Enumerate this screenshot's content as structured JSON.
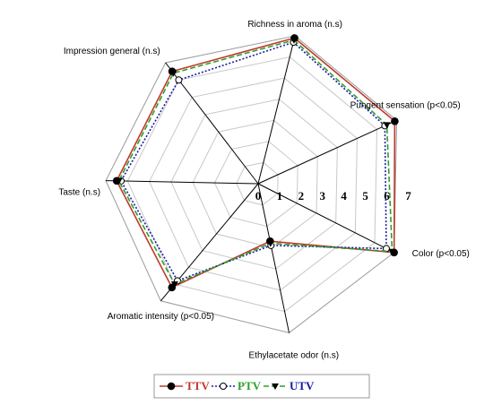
{
  "chart_data": {
    "type": "radar",
    "axes": [
      "Richness in aroma (n.s)",
      "Pungent sensation (p<0.05)",
      "Color (p<0.05)",
      "Ethylacetate odor (n.s)",
      "Aromatic intensity (p<0.05)",
      "Taste (n.s)",
      "Impression general (n.s)"
    ],
    "ticks": [
      "0",
      "1",
      "2",
      "3",
      "4",
      "5",
      "6",
      "7"
    ],
    "rmax": 7,
    "grid": true,
    "legend_position": "bottom",
    "series": [
      {
        "name": "TTV",
        "color": "#c0392b",
        "line": "solid",
        "marker": "filled-circle",
        "values": [
          6.9,
          6.9,
          7.0,
          2.7,
          6.2,
          6.5,
          6.5
        ]
      },
      {
        "name": "PTV",
        "color": "#1a1aa8",
        "line": "dotted",
        "marker": "open-circle",
        "values": [
          6.7,
          6.4,
          6.6,
          2.9,
          5.8,
          6.3,
          6.0
        ]
      },
      {
        "name": "UTV",
        "color": "#2ca02c",
        "line": "dashed",
        "marker": "filled-triangle",
        "values": [
          6.8,
          6.5,
          6.9,
          2.8,
          6.0,
          6.4,
          6.4
        ]
      }
    ],
    "plotted": [
      {
        "name": "TTV",
        "color": "#c0392b",
        "dash": "",
        "marker": "circle-filled",
        "values": [
          6.9,
          6.9,
          7.0,
          2.7,
          6.2,
          6.5,
          6.5
        ]
      },
      {
        "name": "PTV",
        "color": "#1a1aa8",
        "dash": "2,2",
        "marker": "circle-open",
        "values": [
          6.7,
          6.4,
          6.6,
          2.9,
          5.8,
          6.3,
          6.0
        ]
      },
      {
        "name": "UTV",
        "color": "#2ca02c",
        "dash": "6,3",
        "marker": "triangle",
        "values": [
          6.8,
          6.5,
          6.9,
          2.8,
          6.0,
          6.4,
          6.4
        ]
      }
    ],
    "legend_entries": [
      {
        "name": "TTV",
        "color": "#c0392b",
        "dash": "",
        "marker": "circle-filled",
        "text_color": "#c0392b"
      },
      {
        "name": "PTV",
        "color": "#1a1aa8",
        "dash": "2,2",
        "marker": "circle-open",
        "text_color": "#2ca02c"
      },
      {
        "name": "UTV",
        "color": "#2ca02c",
        "dash": "6,3",
        "marker": "triangle",
        "text_color": "#1a1aa8"
      }
    ]
  }
}
